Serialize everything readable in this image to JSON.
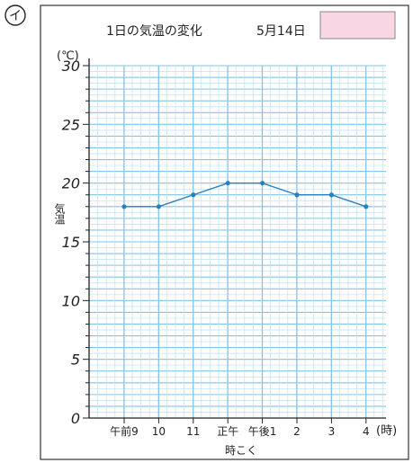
{
  "figure_marker": "イ",
  "title": "1日の気温の変化",
  "date": "5月14日",
  "answer_box": {
    "color": "#f9d6e4",
    "text": ""
  },
  "chart_data": {
    "type": "line",
    "title": "1日の気温の変化",
    "subtitle": "5月14日",
    "xlabel": "時こく",
    "x_unit": "(時)",
    "ylabel": "気温",
    "y_unit": "(℃)",
    "categories": [
      "午前9",
      "10",
      "11",
      "正午",
      "午後1",
      "2",
      "3",
      "4"
    ],
    "values": [
      18,
      18,
      19,
      20,
      20,
      19,
      19,
      18
    ],
    "ylim": [
      0,
      30
    ],
    "yticks": [
      0,
      5,
      10,
      15,
      20,
      25,
      30
    ],
    "grid": true,
    "line_color": "#2a7fc1"
  }
}
